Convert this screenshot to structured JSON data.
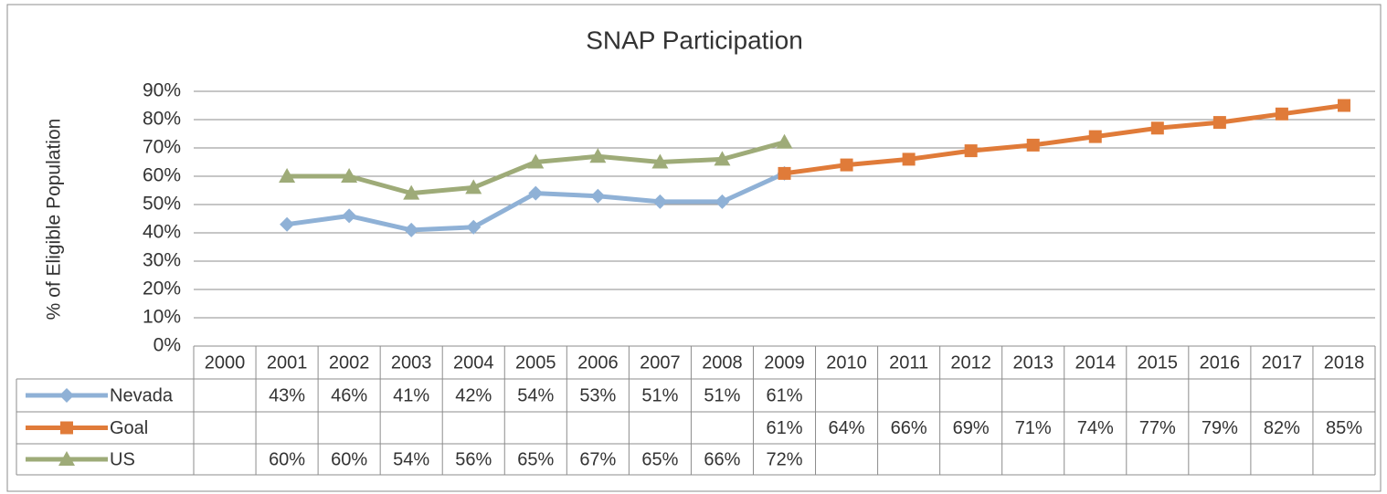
{
  "chart_data": {
    "type": "line",
    "title": "SNAP Participation",
    "y_label": "% of Eligible Population",
    "categories": [
      "2000",
      "2001",
      "2002",
      "2003",
      "2004",
      "2005",
      "2006",
      "2007",
      "2008",
      "2009",
      "2010",
      "2011",
      "2012",
      "2013",
      "2014",
      "2015",
      "2016",
      "2017",
      "2018"
    ],
    "series": [
      {
        "name": "Nevada",
        "color": "#8fb1d6",
        "marker": "diamond",
        "values": [
          null,
          43,
          46,
          41,
          42,
          54,
          53,
          51,
          51,
          61,
          null,
          null,
          null,
          null,
          null,
          null,
          null,
          null,
          null
        ],
        "value_labels": [
          null,
          "43%",
          "46%",
          "41%",
          "42%",
          "54%",
          "53%",
          "51%",
          "51%",
          "61%",
          null,
          null,
          null,
          null,
          null,
          null,
          null,
          null,
          null
        ]
      },
      {
        "name": "Goal",
        "color": "#e07b39",
        "marker": "square",
        "values": [
          null,
          null,
          null,
          null,
          null,
          null,
          null,
          null,
          null,
          61,
          64,
          66,
          69,
          71,
          74,
          77,
          79,
          82,
          85
        ],
        "value_labels": [
          null,
          null,
          null,
          null,
          null,
          null,
          null,
          null,
          null,
          "61%",
          "64%",
          "66%",
          "69%",
          "71%",
          "74%",
          "77%",
          "79%",
          "82%",
          "85%"
        ]
      },
      {
        "name": "US",
        "color": "#9eab78",
        "marker": "triangle",
        "values": [
          null,
          60,
          60,
          54,
          56,
          65,
          67,
          65,
          66,
          72,
          null,
          null,
          null,
          null,
          null,
          null,
          null,
          null,
          null
        ],
        "value_labels": [
          null,
          "60%",
          "60%",
          "54%",
          "56%",
          "65%",
          "67%",
          "65%",
          "66%",
          "72%",
          null,
          null,
          null,
          null,
          null,
          null,
          null,
          null,
          null
        ]
      }
    ],
    "ylim": [
      0,
      90
    ],
    "yticks": [
      {
        "value": 0,
        "label": "0%"
      },
      {
        "value": 10,
        "label": "10%"
      },
      {
        "value": 20,
        "label": "20%"
      },
      {
        "value": 30,
        "label": "30%"
      },
      {
        "value": 40,
        "label": "40%"
      },
      {
        "value": 50,
        "label": "50%"
      },
      {
        "value": 60,
        "label": "60%"
      },
      {
        "value": 70,
        "label": "70%"
      },
      {
        "value": 80,
        "label": "80%"
      },
      {
        "value": 90,
        "label": "90%"
      }
    ],
    "grid": true,
    "data_table": true
  }
}
